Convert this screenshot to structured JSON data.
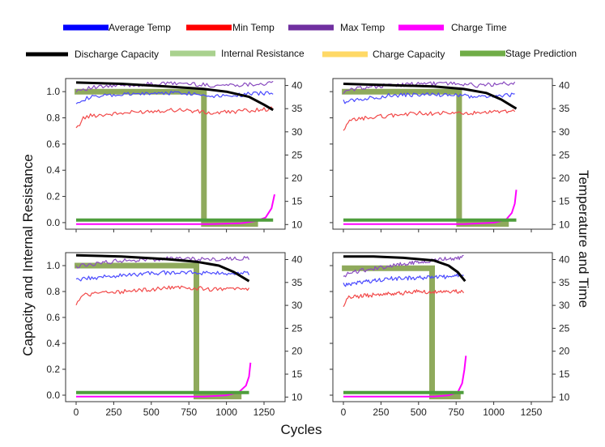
{
  "legend": [
    {
      "label": "Average Temp",
      "color": "#0000ff"
    },
    {
      "label": "Min Temp",
      "color": "#ff0000"
    },
    {
      "label": "Max Temp",
      "color": "#7030a0"
    },
    {
      "label": "Charge Time",
      "color": "#ff00ff"
    },
    {
      "label": "Discharge Capacity",
      "color": "#000000"
    },
    {
      "label": "Internal Resistance",
      "color": "#a9d18e"
    },
    {
      "label": "Charge Capacity",
      "color": "#ffd966"
    },
    {
      "label": "Stage Prediction",
      "color": "#70ad47"
    }
  ],
  "axes": {
    "xlabel": "Cycles",
    "ylabel_left": "Capacity and Internal Resistance",
    "ylabel_right": "Temperature and Time"
  },
  "chart_data": [
    {
      "type": "line",
      "panel": "top-left",
      "xlim": [
        -70,
        1390
      ],
      "ylim": [
        -0.05,
        1.1
      ],
      "y2lim": [
        9,
        41.5
      ],
      "xticks": [
        0,
        250,
        500,
        750,
        1000,
        1250
      ],
      "yticks": [
        0.0,
        0.2,
        0.4,
        0.6,
        0.8,
        1.0
      ],
      "y2ticks": [
        10,
        15,
        20,
        25,
        30,
        35,
        40
      ],
      "series": [
        {
          "name": "Average Temp",
          "axis": "right",
          "x": [
            0,
            100,
            300,
            500,
            700,
            900,
            1100,
            1310
          ],
          "y": [
            36.5,
            37.5,
            38.0,
            38.3,
            38.5,
            37.8,
            38.0,
            38.5
          ]
        },
        {
          "name": "Min Temp",
          "axis": "right",
          "x": [
            0,
            100,
            300,
            500,
            700,
            900,
            1100,
            1310
          ],
          "y": [
            32.5,
            33.5,
            34.0,
            34.5,
            34.8,
            34.0,
            34.5,
            35.0
          ]
        },
        {
          "name": "Max Temp",
          "axis": "right",
          "x": [
            0,
            100,
            300,
            500,
            700,
            900,
            1100,
            1310
          ],
          "y": [
            39.0,
            39.5,
            40.0,
            40.3,
            40.5,
            40.0,
            40.2,
            40.5
          ]
        },
        {
          "name": "Charge Time",
          "axis": "right",
          "x": [
            0,
            900,
            1100,
            1200,
            1260,
            1300,
            1320
          ],
          "y": [
            10.1,
            10.1,
            10.3,
            10.8,
            11.5,
            13.5,
            16.5
          ]
        },
        {
          "name": "Discharge Capacity",
          "axis": "left",
          "x": [
            0,
            300,
            600,
            850,
            1000,
            1150,
            1250,
            1310
          ],
          "y": [
            1.07,
            1.06,
            1.04,
            1.02,
            1.0,
            0.96,
            0.9,
            0.86
          ]
        },
        {
          "name": "Stage Prediction",
          "axis": "left",
          "x": [
            0,
            1310
          ],
          "y": [
            0.02,
            0.02
          ]
        }
      ],
      "steps": [
        {
          "name": "Internal Resistance",
          "x": [
            -10,
            850,
            850,
            1210
          ],
          "y": [
            1.0,
            1.0,
            -0.01,
            -0.01
          ]
        }
      ]
    },
    {
      "type": "line",
      "panel": "top-right",
      "xlim": [
        -70,
        1390
      ],
      "ylim": [
        -0.05,
        1.1
      ],
      "y2lim": [
        9,
        41.5
      ],
      "xticks": [
        0,
        250,
        500,
        750,
        1000,
        1250
      ],
      "yticks": [
        0.0,
        0.2,
        0.4,
        0.6,
        0.8,
        1.0
      ],
      "y2ticks": [
        10,
        15,
        20,
        25,
        30,
        35,
        40
      ],
      "series": [
        {
          "name": "Average Temp",
          "axis": "right",
          "x": [
            0,
            100,
            300,
            500,
            700,
            900,
            1140
          ],
          "y": [
            36.5,
            37.0,
            37.8,
            38.0,
            38.0,
            37.5,
            38.0
          ]
        },
        {
          "name": "Min Temp",
          "axis": "right",
          "x": [
            0,
            100,
            300,
            500,
            700,
            900,
            1140
          ],
          "y": [
            32.0,
            32.8,
            33.5,
            34.0,
            34.0,
            34.0,
            34.5
          ]
        },
        {
          "name": "Max Temp",
          "axis": "right",
          "x": [
            0,
            100,
            300,
            500,
            700,
            900,
            1140
          ],
          "y": [
            38.5,
            39.5,
            40.0,
            40.3,
            40.5,
            40.0,
            40.5
          ]
        },
        {
          "name": "Charge Time",
          "axis": "right",
          "x": [
            0,
            800,
            1000,
            1080,
            1120,
            1140,
            1150
          ],
          "y": [
            10.1,
            10.1,
            10.4,
            11.0,
            12.5,
            14.5,
            17.5
          ]
        },
        {
          "name": "Discharge Capacity",
          "axis": "left",
          "x": [
            0,
            300,
            600,
            800,
            950,
            1050,
            1150
          ],
          "y": [
            1.06,
            1.05,
            1.04,
            1.02,
            0.99,
            0.94,
            0.87
          ]
        },
        {
          "name": "Stage Prediction",
          "axis": "left",
          "x": [
            0,
            1150
          ],
          "y": [
            0.02,
            0.02
          ]
        }
      ],
      "steps": [
        {
          "name": "Internal Resistance",
          "x": [
            -10,
            770,
            770,
            1100
          ],
          "y": [
            1.0,
            1.0,
            -0.01,
            -0.01
          ]
        }
      ]
    },
    {
      "type": "line",
      "panel": "bottom-left",
      "xlim": [
        -70,
        1390
      ],
      "ylim": [
        -0.05,
        1.1
      ],
      "y2lim": [
        9,
        41.5
      ],
      "xticks": [
        0,
        250,
        500,
        750,
        1000,
        1250
      ],
      "yticks": [
        0.0,
        0.2,
        0.4,
        0.6,
        0.8,
        1.0
      ],
      "y2ticks": [
        10,
        15,
        20,
        25,
        30,
        35,
        40
      ],
      "series": [
        {
          "name": "Average Temp",
          "axis": "right",
          "x": [
            0,
            100,
            300,
            500,
            700,
            900,
            1150
          ],
          "y": [
            35.5,
            36.0,
            36.5,
            37.0,
            37.3,
            37.0,
            37.0
          ]
        },
        {
          "name": "Min Temp",
          "axis": "right",
          "x": [
            0,
            100,
            300,
            500,
            700,
            900,
            1150
          ],
          "y": [
            32.0,
            32.5,
            33.0,
            33.5,
            34.0,
            33.5,
            33.5
          ]
        },
        {
          "name": "Max Temp",
          "axis": "right",
          "x": [
            0,
            100,
            300,
            500,
            700,
            900,
            1150
          ],
          "y": [
            38.5,
            39.0,
            39.8,
            40.0,
            40.3,
            40.0,
            40.3
          ]
        },
        {
          "name": "Charge Time",
          "axis": "right",
          "x": [
            0,
            850,
            1000,
            1080,
            1130,
            1150,
            1160
          ],
          "y": [
            10.1,
            10.1,
            10.4,
            11.0,
            12.5,
            14.5,
            17.5
          ]
        },
        {
          "name": "Discharge Capacity",
          "axis": "left",
          "x": [
            0,
            300,
            600,
            800,
            950,
            1050,
            1150
          ],
          "y": [
            1.08,
            1.07,
            1.05,
            1.03,
            1.0,
            0.95,
            0.88
          ]
        },
        {
          "name": "Stage Prediction",
          "axis": "left",
          "x": [
            0,
            1150
          ],
          "y": [
            0.02,
            0.02
          ]
        }
      ],
      "steps": [
        {
          "name": "Internal Resistance",
          "x": [
            -10,
            800,
            800,
            1100
          ],
          "y": [
            1.0,
            1.0,
            -0.01,
            -0.01
          ]
        }
      ]
    },
    {
      "type": "line",
      "panel": "bottom-right",
      "xlim": [
        -70,
        1390
      ],
      "ylim": [
        -0.05,
        1.1
      ],
      "y2lim": [
        9,
        41.5
      ],
      "xticks": [
        0,
        250,
        500,
        750,
        1000,
        1250
      ],
      "yticks": [
        0.0,
        0.2,
        0.4,
        0.6,
        0.8,
        1.0
      ],
      "y2ticks": [
        10,
        15,
        20,
        25,
        30,
        35,
        40
      ],
      "series": [
        {
          "name": "Average Temp",
          "axis": "right",
          "x": [
            0,
            100,
            300,
            500,
            650,
            800
          ],
          "y": [
            34.5,
            35.0,
            35.8,
            36.0,
            36.2,
            36.5
          ]
        },
        {
          "name": "Min Temp",
          "axis": "right",
          "x": [
            0,
            100,
            300,
            500,
            650,
            800
          ],
          "y": [
            31.5,
            32.0,
            32.5,
            33.0,
            33.0,
            33.0
          ]
        },
        {
          "name": "Max Temp",
          "axis": "right",
          "x": [
            0,
            100,
            300,
            500,
            650,
            800
          ],
          "y": [
            36.5,
            37.5,
            38.5,
            39.5,
            40.0,
            40.5
          ]
        },
        {
          "name": "Charge Time",
          "axis": "right",
          "x": [
            0,
            600,
            700,
            760,
            790,
            805,
            815
          ],
          "y": [
            10.1,
            10.1,
            10.4,
            11.0,
            13.0,
            16.0,
            19.0
          ]
        },
        {
          "name": "Discharge Capacity",
          "axis": "left",
          "x": [
            0,
            200,
            400,
            600,
            700,
            760,
            810
          ],
          "y": [
            1.07,
            1.07,
            1.06,
            1.04,
            1.0,
            0.95,
            0.88
          ]
        },
        {
          "name": "Stage Prediction",
          "axis": "left",
          "x": [
            0,
            800
          ],
          "y": [
            0.02,
            0.02
          ]
        }
      ],
      "steps": [
        {
          "name": "Internal Resistance",
          "x": [
            -10,
            590,
            590,
            780
          ],
          "y": [
            0.98,
            0.98,
            -0.01,
            -0.01
          ]
        }
      ]
    }
  ]
}
